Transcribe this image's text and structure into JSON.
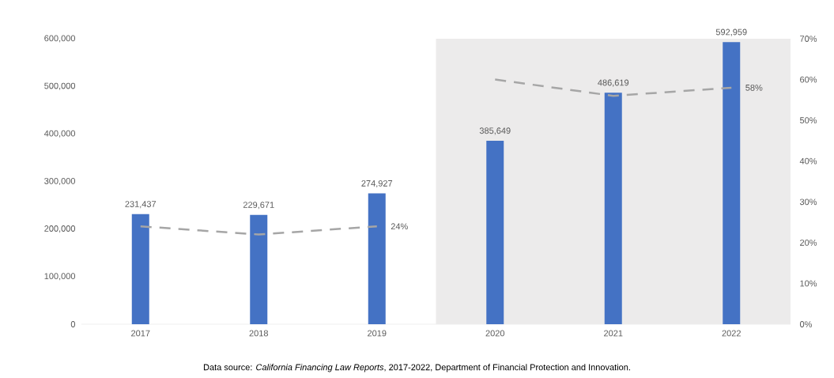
{
  "chart_data": {
    "type": "bar",
    "categories": [
      "2017",
      "2018",
      "2019",
      "2020",
      "2021",
      "2022"
    ],
    "values": [
      231437,
      229671,
      274927,
      385649,
      486619,
      592959
    ],
    "color": "#4472c4",
    "value_labels": [
      "231,437",
      "229,671",
      "274,927",
      "385,649",
      "486,619",
      "592,959"
    ],
    "ylim": [
      0,
      600000
    ],
    "yticks": [
      0,
      {
        "value": 100000,
        "label": "100,000"
      },
      {
        "value": 200000,
        "label": "200,000"
      },
      {
        "value": 300000,
        "label": "300,000"
      },
      {
        "value": 400000,
        "label": "400,000"
      },
      {
        "value": 500000,
        "label": "500,000"
      },
      {
        "value": 600000,
        "label": "600,000"
      }
    ],
    "y2lim": [
      0,
      70
    ],
    "y2ticks": [
      {
        "value": 0,
        "label": "0%"
      },
      {
        "value": 10,
        "label": "10%"
      },
      {
        "value": 20,
        "label": "20%"
      },
      {
        "value": 30,
        "label": "30%"
      },
      {
        "value": 40,
        "label": "40%"
      },
      {
        "value": 50,
        "label": "50%"
      },
      {
        "value": 60,
        "label": "60%"
      },
      {
        "value": 70,
        "label": "70%"
      }
    ],
    "series": [
      {
        "type": "line",
        "axis": "y2",
        "color": "#a6a6a6",
        "line_style": "dashed",
        "values": [
          24,
          22,
          24,
          null,
          null,
          null
        ],
        "value_labels": [
          null,
          null,
          "24%",
          null,
          null,
          null
        ]
      },
      {
        "type": "line",
        "axis": "y2",
        "color": "#a6a6a6",
        "line_style": "dashed",
        "values": [
          null,
          null,
          null,
          60,
          56,
          58
        ],
        "value_labels": [
          null,
          null,
          null,
          null,
          null,
          "58%"
        ]
      }
    ],
    "bands": [
      {
        "axis": "x",
        "from": "2020",
        "to": "2022",
        "color": "#ecebeb"
      }
    ],
    "grid": false,
    "annotations": [
      "Data source: *California Financing Law Reports*, 2017-2022, Department of Financial Protection and Innovation."
    ]
  }
}
